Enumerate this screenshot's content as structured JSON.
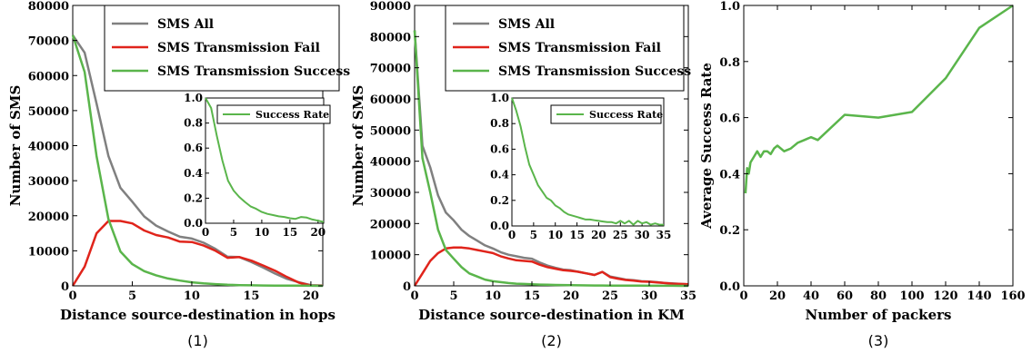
{
  "chart_data": [
    {
      "type": "line",
      "xlabel": "Distance source-destination in hops",
      "ylabel": "Number of SMS",
      "caption": "(1)",
      "xlim": [
        0,
        21
      ],
      "ylim": [
        0,
        80000
      ],
      "xticks": [
        0,
        5,
        10,
        15,
        20
      ],
      "yticks": [
        0,
        10000,
        20000,
        30000,
        40000,
        50000,
        60000,
        70000,
        80000
      ],
      "legend_position": "top-right",
      "series": [
        {
          "name": "SMS All",
          "color": "#808080",
          "x": [
            0,
            1,
            2,
            3,
            4,
            5,
            6,
            7,
            8,
            9,
            10,
            11,
            12,
            13,
            14,
            15,
            16,
            17,
            18,
            19,
            20,
            21
          ],
          "y": [
            71500,
            66500,
            52000,
            37000,
            28000,
            24000,
            19800,
            17200,
            15500,
            14000,
            13500,
            12300,
            10500,
            8300,
            8200,
            6800,
            5200,
            3500,
            2000,
            1000,
            200,
            100
          ]
        },
        {
          "name": "SMS Transmission Fail",
          "color": "#e0241b",
          "x": [
            0,
            1,
            2,
            3,
            4,
            5,
            6,
            7,
            8,
            9,
            10,
            11,
            12,
            13,
            14,
            15,
            16,
            17,
            18,
            19,
            20,
            21
          ],
          "y": [
            0,
            5500,
            15000,
            18500,
            18500,
            17800,
            15800,
            14500,
            13800,
            12600,
            12500,
            11500,
            10000,
            8000,
            8200,
            7200,
            5800,
            4300,
            2500,
            900,
            100,
            50
          ]
        },
        {
          "name": "SMS Transmission Success",
          "color": "#5ab54b",
          "x": [
            0,
            1,
            2,
            3,
            4,
            5,
            6,
            7,
            8,
            9,
            10,
            11,
            12,
            13,
            14,
            15,
            16,
            17,
            18,
            19,
            20,
            21
          ],
          "y": [
            71500,
            61000,
            37000,
            19000,
            9800,
            6200,
            4200,
            3000,
            2100,
            1500,
            1000,
            700,
            500,
            300,
            200,
            150,
            100,
            80,
            60,
            40,
            20,
            10
          ]
        }
      ],
      "inset": {
        "xlim": [
          0,
          21
        ],
        "ylim": [
          0,
          1.0
        ],
        "xticks": [
          0,
          5,
          10,
          15,
          20
        ],
        "yticks": [
          0.0,
          0.2,
          0.4,
          0.6,
          0.8,
          1.0
        ],
        "series": [
          {
            "name": "Success Rate",
            "color": "#5ab54b",
            "x": [
              0,
              1,
              2,
              3,
              4,
              5,
              6,
              7,
              8,
              9,
              10,
              11,
              12,
              13,
              14,
              15,
              16,
              17,
              18,
              19,
              20,
              21
            ],
            "y": [
              1.0,
              0.92,
              0.7,
              0.5,
              0.34,
              0.26,
              0.21,
              0.17,
              0.135,
              0.115,
              0.09,
              0.075,
              0.065,
              0.055,
              0.05,
              0.04,
              0.035,
              0.05,
              0.045,
              0.03,
              0.02,
              0.01
            ]
          }
        ]
      }
    },
    {
      "type": "line",
      "xlabel": "Distance source-destination in KM",
      "ylabel": "Number of SMS",
      "caption": "(2)",
      "xlim": [
        0,
        35
      ],
      "ylim": [
        0,
        90000
      ],
      "xticks": [
        0,
        5,
        10,
        15,
        20,
        25,
        30,
        35
      ],
      "yticks": [
        0,
        10000,
        20000,
        30000,
        40000,
        50000,
        60000,
        70000,
        80000,
        90000
      ],
      "legend_position": "top-right",
      "series": [
        {
          "name": "SMS All",
          "color": "#808080",
          "x": [
            0,
            1,
            2,
            3,
            4,
            5,
            6,
            7,
            8,
            9,
            10,
            11,
            12,
            13,
            14,
            15,
            16,
            17,
            18,
            19,
            20,
            21,
            22,
            23,
            24,
            25,
            26,
            27,
            28,
            29,
            30,
            31,
            32,
            33,
            34,
            35
          ],
          "y": [
            82000,
            45000,
            38000,
            29000,
            23500,
            21000,
            18000,
            16000,
            14500,
            13000,
            12000,
            10800,
            10000,
            9500,
            9000,
            8700,
            7500,
            6500,
            5800,
            5200,
            5000,
            4500,
            4000,
            3500,
            4500,
            3000,
            2500,
            2000,
            1800,
            1500,
            1400,
            1200,
            900,
            800,
            600,
            500
          ]
        },
        {
          "name": "SMS Transmission Fail",
          "color": "#e0241b",
          "x": [
            0,
            1,
            2,
            3,
            4,
            5,
            6,
            7,
            8,
            9,
            10,
            11,
            12,
            13,
            14,
            15,
            16,
            17,
            18,
            19,
            20,
            21,
            22,
            23,
            24,
            25,
            26,
            27,
            28,
            29,
            30,
            31,
            32,
            33,
            34,
            35
          ],
          "y": [
            0,
            4000,
            8000,
            10500,
            12000,
            12300,
            12300,
            12000,
            11500,
            11000,
            10500,
            9500,
            8800,
            8200,
            8000,
            7800,
            6800,
            6000,
            5500,
            5000,
            4800,
            4500,
            4000,
            3500,
            4500,
            2800,
            2300,
            1900,
            1700,
            1400,
            1300,
            1100,
            900,
            700,
            600,
            500
          ]
        },
        {
          "name": "SMS Transmission Success",
          "color": "#5ab54b",
          "x": [
            0,
            1,
            2,
            3,
            4,
            5,
            6,
            7,
            8,
            9,
            10,
            11,
            12,
            13,
            14,
            15,
            16,
            17,
            18,
            19,
            20,
            21,
            22,
            23,
            24,
            25,
            26,
            27,
            28,
            29,
            30,
            31,
            32,
            33,
            34,
            35
          ],
          "y": [
            82000,
            41000,
            30000,
            18000,
            11500,
            8700,
            6000,
            4000,
            3000,
            2000,
            1500,
            1200,
            900,
            700,
            600,
            500,
            400,
            350,
            300,
            250,
            200,
            180,
            150,
            130,
            110,
            100,
            80,
            70,
            60,
            50,
            40,
            30,
            20,
            15,
            10,
            5
          ]
        }
      ],
      "inset": {
        "xlim": [
          0,
          35
        ],
        "ylim": [
          0,
          1.0
        ],
        "xticks": [
          0,
          5,
          10,
          15,
          20,
          25,
          30,
          35
        ],
        "yticks": [
          0.0,
          0.2,
          0.4,
          0.6,
          0.8,
          1.0
        ],
        "series": [
          {
            "name": "Success Rate",
            "color": "#5ab54b",
            "x": [
              0,
              1,
              2,
              3,
              4,
              5,
              6,
              7,
              8,
              9,
              10,
              11,
              12,
              13,
              14,
              15,
              16,
              17,
              18,
              19,
              20,
              21,
              22,
              23,
              24,
              25,
              26,
              27,
              28,
              29,
              30,
              31,
              32,
              33,
              34,
              35
            ],
            "y": [
              1.0,
              0.9,
              0.78,
              0.62,
              0.48,
              0.4,
              0.32,
              0.27,
              0.22,
              0.2,
              0.16,
              0.14,
              0.11,
              0.09,
              0.08,
              0.07,
              0.06,
              0.05,
              0.05,
              0.045,
              0.04,
              0.035,
              0.03,
              0.03,
              0.02,
              0.04,
              0.02,
              0.04,
              0.01,
              0.04,
              0.02,
              0.03,
              0.01,
              0.02,
              0.01,
              0.01
            ]
          }
        ]
      }
    },
    {
      "type": "line",
      "xlabel": "Number of packers",
      "ylabel": "Average Success Rate",
      "caption": "(3)",
      "xlim": [
        0,
        160
      ],
      "ylim": [
        0,
        1.0
      ],
      "xticks": [
        0,
        20,
        40,
        60,
        80,
        100,
        120,
        140,
        160
      ],
      "yticks": [
        0.0,
        0.2,
        0.4,
        0.6,
        0.8,
        1.0
      ],
      "series": [
        {
          "color": "#5ab54b",
          "x": [
            1,
            2,
            3,
            4,
            6,
            8,
            10,
            12,
            14,
            16,
            18,
            20,
            24,
            28,
            32,
            36,
            40,
            44,
            60,
            80,
            100,
            120,
            140,
            160
          ],
          "y": [
            0.33,
            0.42,
            0.4,
            0.44,
            0.46,
            0.48,
            0.46,
            0.48,
            0.48,
            0.47,
            0.49,
            0.5,
            0.48,
            0.49,
            0.51,
            0.52,
            0.53,
            0.52,
            0.61,
            0.6,
            0.62,
            0.74,
            0.92,
            1.0
          ]
        }
      ]
    }
  ]
}
